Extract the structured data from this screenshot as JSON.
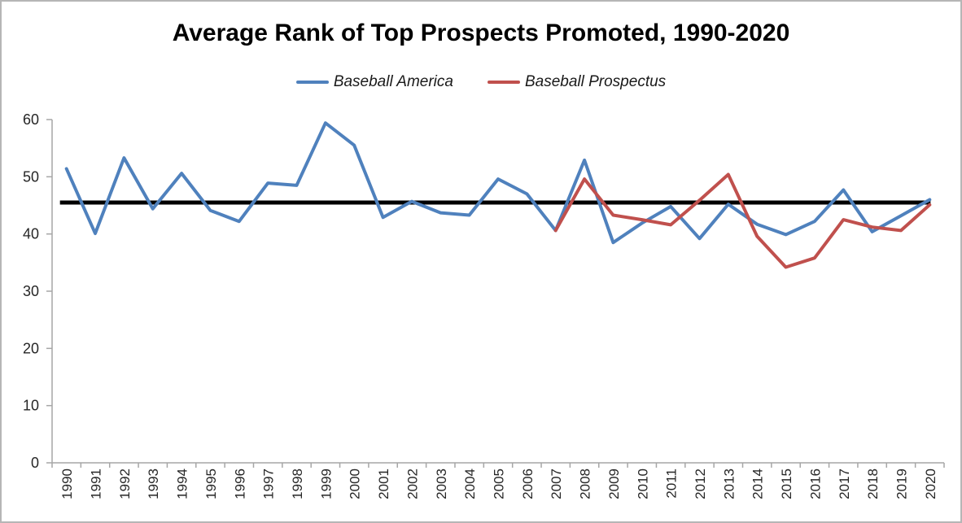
{
  "chart_data": {
    "type": "line",
    "title": "Average Rank of Top Prospects Promoted, 1990-2020",
    "xlabel": "",
    "ylabel": "",
    "ylim": [
      0,
      60
    ],
    "ytick_step": 10,
    "grid": false,
    "legend_position": "top",
    "categories": [
      "1990",
      "1991",
      "1992",
      "1993",
      "1994",
      "1995",
      "1996",
      "1997",
      "1998",
      "1999",
      "2000",
      "2001",
      "2002",
      "2003",
      "2004",
      "2005",
      "2006",
      "2007",
      "2008",
      "2009",
      "2010",
      "2011",
      "2012",
      "2013",
      "2014",
      "2015",
      "2016",
      "2017",
      "2018",
      "2019",
      "2020"
    ],
    "series": [
      {
        "name": "Baseball America",
        "color": "#4F81BD",
        "values": [
          51.4,
          40.1,
          53.3,
          44.4,
          50.6,
          44.1,
          42.2,
          48.9,
          48.5,
          59.4,
          55.5,
          42.9,
          45.7,
          43.7,
          43.3,
          49.6,
          47.0,
          40.6,
          52.9,
          38.5,
          41.9,
          44.8,
          39.2,
          45.2,
          41.7,
          39.9,
          42.2,
          47.7,
          40.4,
          43.2,
          46.0
        ]
      },
      {
        "name": "Baseball Prospectus",
        "color": "#C0504D",
        "values": [
          null,
          null,
          null,
          null,
          null,
          null,
          null,
          null,
          null,
          null,
          null,
          null,
          null,
          null,
          null,
          null,
          null,
          40.6,
          49.6,
          43.3,
          42.5,
          41.6,
          45.9,
          50.4,
          39.6,
          34.2,
          35.8,
          42.5,
          41.2,
          40.6,
          45.1
        ]
      }
    ],
    "reference_line": {
      "value": 45.5,
      "color": "#000000"
    },
    "yticks": [
      0,
      10,
      20,
      30,
      40,
      50,
      60
    ],
    "axis_color": "#a6a6a6",
    "tick_label_color": "#262626"
  }
}
